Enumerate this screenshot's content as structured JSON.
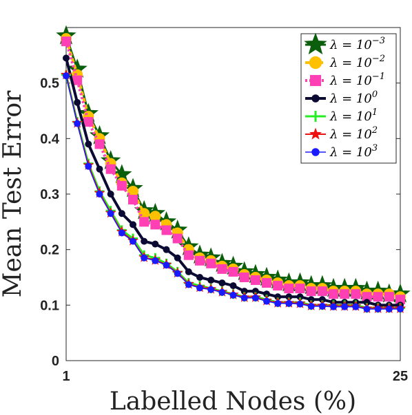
{
  "chart_data": {
    "type": "line",
    "xlabel": "Labelled Nodes (%)",
    "ylabel": "Mean Test Error",
    "xlim": [
      1,
      25
    ],
    "ylim": [
      0,
      0.6
    ],
    "x_tick_labels": [
      "1",
      "25"
    ],
    "y_tick_labels": [
      "0",
      "0.1",
      "0.2",
      "0.3",
      "0.4",
      "0.5"
    ],
    "y_tick_values": [
      0,
      0.1,
      0.2,
      0.3,
      0.4,
      0.5
    ],
    "grid": false,
    "legend_position": "top-right",
    "x": [
      1,
      1.8,
      2.6,
      3.4,
      4.2,
      5,
      5.8,
      6.6,
      7.4,
      8.2,
      9,
      9.8,
      10.6,
      11.4,
      12.2,
      13,
      13.8,
      14.6,
      15.4,
      16.2,
      17,
      17.8,
      18.6,
      19.4,
      20.2,
      21,
      21.8,
      22.6,
      23.4,
      24.2,
      25
    ],
    "series": [
      {
        "name": "λ = 10^-3",
        "legend_base": "λ = 10",
        "legend_exp": "−3",
        "color": "#0b5e0b",
        "marker": "star",
        "values": [
          0.585,
          0.525,
          0.445,
          0.405,
          0.36,
          0.335,
          0.31,
          0.27,
          0.265,
          0.25,
          0.235,
          0.205,
          0.19,
          0.185,
          0.175,
          0.17,
          0.16,
          0.155,
          0.15,
          0.145,
          0.14,
          0.14,
          0.135,
          0.135,
          0.13,
          0.13,
          0.13,
          0.125,
          0.125,
          0.12,
          0.12
        ]
      },
      {
        "name": "λ = 10^-2",
        "legend_base": "λ = 10",
        "legend_exp": "−2",
        "color": "#ffc000",
        "marker": "circle",
        "values": [
          0.58,
          0.515,
          0.44,
          0.4,
          0.355,
          0.32,
          0.305,
          0.265,
          0.26,
          0.245,
          0.23,
          0.2,
          0.185,
          0.18,
          0.17,
          0.165,
          0.155,
          0.15,
          0.145,
          0.14,
          0.135,
          0.135,
          0.13,
          0.13,
          0.125,
          0.125,
          0.125,
          0.12,
          0.12,
          0.12,
          0.115
        ]
      },
      {
        "name": "λ = 10^-1",
        "legend_base": "λ = 10",
        "legend_exp": "−1",
        "color": "#ff3fb4",
        "marker": "square",
        "values": [
          0.575,
          0.505,
          0.43,
          0.39,
          0.345,
          0.315,
          0.29,
          0.25,
          0.245,
          0.235,
          0.22,
          0.19,
          0.18,
          0.175,
          0.165,
          0.16,
          0.15,
          0.145,
          0.14,
          0.135,
          0.13,
          0.13,
          0.125,
          0.125,
          0.12,
          0.12,
          0.12,
          0.115,
          0.115,
          0.115,
          0.11
        ]
      },
      {
        "name": "λ = 10^0",
        "legend_base": "λ = 10",
        "legend_exp": "0",
        "color": "#0a0a33",
        "marker": "circle-small",
        "values": [
          0.545,
          0.465,
          0.39,
          0.345,
          0.3,
          0.265,
          0.245,
          0.215,
          0.21,
          0.2,
          0.185,
          0.16,
          0.15,
          0.145,
          0.14,
          0.135,
          0.125,
          0.125,
          0.12,
          0.115,
          0.115,
          0.115,
          0.11,
          0.11,
          0.105,
          0.105,
          0.105,
          0.105,
          0.1,
          0.1,
          0.1
        ]
      },
      {
        "name": "λ = 10^1",
        "legend_base": "λ = 10",
        "legend_exp": "1",
        "color": "#22ee22",
        "marker": "plus",
        "values": [
          0.515,
          0.43,
          0.355,
          0.305,
          0.27,
          0.235,
          0.22,
          0.19,
          0.185,
          0.175,
          0.16,
          0.14,
          0.135,
          0.13,
          0.125,
          0.12,
          0.115,
          0.115,
          0.11,
          0.105,
          0.105,
          0.105,
          0.1,
          0.1,
          0.1,
          0.1,
          0.1,
          0.095,
          0.095,
          0.095,
          0.095
        ]
      },
      {
        "name": "λ = 10^2",
        "legend_base": "λ = 10",
        "legend_exp": "2",
        "color": "#ee1111",
        "marker": "star-small",
        "values": [
          0.515,
          0.428,
          0.352,
          0.302,
          0.266,
          0.232,
          0.216,
          0.186,
          0.181,
          0.173,
          0.158,
          0.138,
          0.132,
          0.129,
          0.124,
          0.119,
          0.114,
          0.114,
          0.108,
          0.104,
          0.104,
          0.103,
          0.099,
          0.099,
          0.098,
          0.098,
          0.098,
          0.094,
          0.094,
          0.094,
          0.094
        ]
      },
      {
        "name": "λ = 10^3",
        "legend_base": "λ = 10",
        "legend_exp": "3",
        "color": "#1a1aff",
        "marker": "circle-small",
        "values": [
          0.513,
          0.427,
          0.35,
          0.3,
          0.265,
          0.23,
          0.215,
          0.185,
          0.18,
          0.172,
          0.157,
          0.137,
          0.131,
          0.128,
          0.123,
          0.118,
          0.113,
          0.113,
          0.107,
          0.103,
          0.103,
          0.102,
          0.098,
          0.098,
          0.097,
          0.097,
          0.097,
          0.093,
          0.093,
          0.093,
          0.093
        ]
      }
    ]
  }
}
